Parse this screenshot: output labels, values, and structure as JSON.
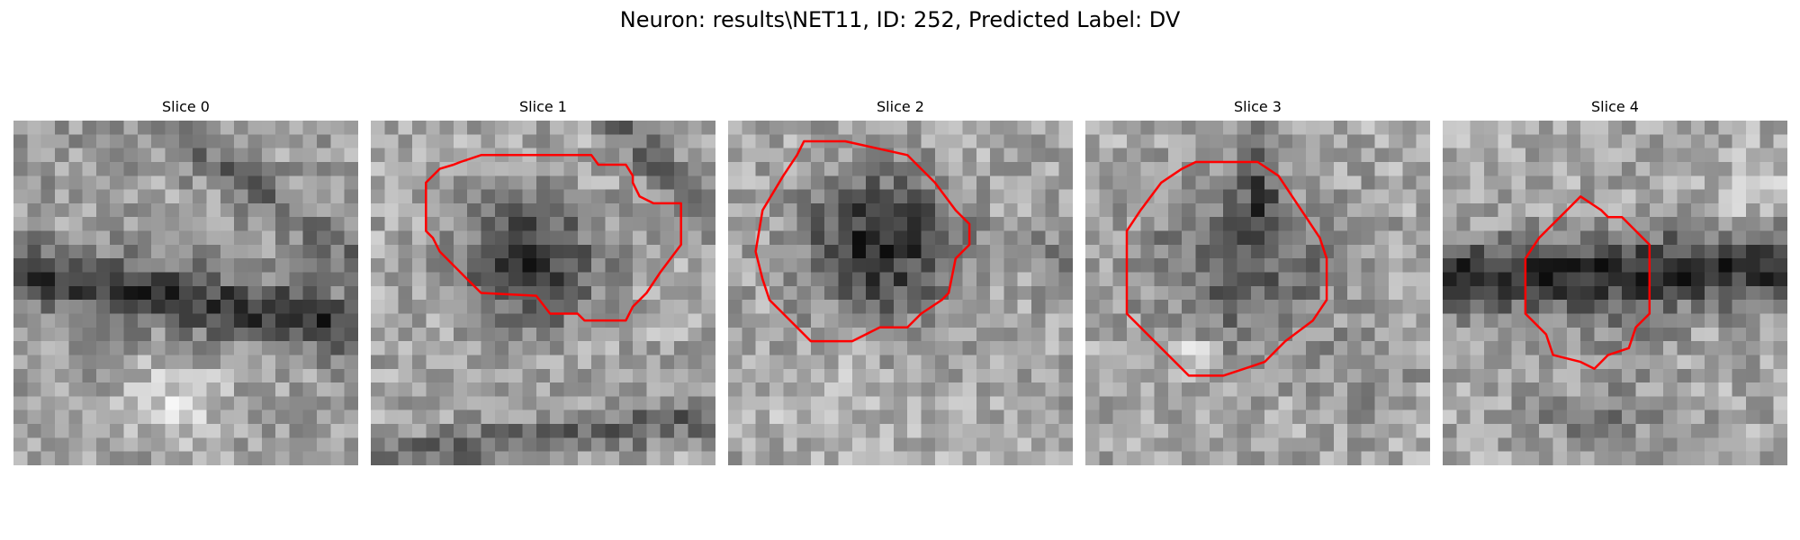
{
  "figure": {
    "title": "Neuron: results\\NET11, ID: 252, Predicted Label: DV"
  },
  "panels": [
    {
      "title": "Slice 0",
      "has_contour": false
    },
    {
      "title": "Slice 1",
      "has_contour": true
    },
    {
      "title": "Slice 2",
      "has_contour": true
    },
    {
      "title": "Slice 3",
      "has_contour": true
    },
    {
      "title": "Slice 4",
      "has_contour": true
    }
  ],
  "colors": {
    "contour": "#ff0000",
    "background": "#ffffff"
  }
}
